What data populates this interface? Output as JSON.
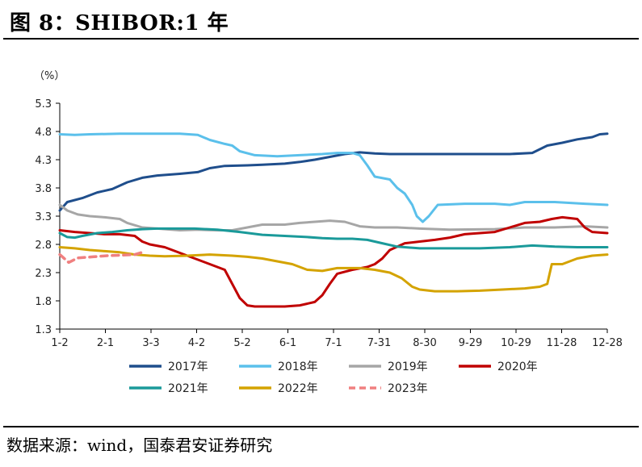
{
  "header": {
    "title": "图 8：SHIBOR:1 年"
  },
  "footer": {
    "source": "数据来源：wind，国泰君安证券研究"
  },
  "chart_data": {
    "type": "line",
    "unit_label": "（%）",
    "x_tick_labels": [
      "1-2",
      "2-1",
      "3-3",
      "4-2",
      "5-2",
      "6-1",
      "7-1",
      "7-31",
      "8-30",
      "9-29",
      "10-29",
      "11-28",
      "12-28"
    ],
    "y_tick_labels": [
      "1.3",
      "1.8",
      "2.3",
      "2.8",
      "3.3",
      "3.8",
      "4.3",
      "4.8",
      "5.3"
    ],
    "ylim": [
      1.3,
      5.3
    ],
    "grid": false,
    "legend_position": "bottom",
    "series": [
      {
        "name": "2017年",
        "color": "#1F4E8C",
        "dashed": false,
        "points": [
          [
            0,
            3.4
          ],
          [
            5,
            3.55
          ],
          [
            15,
            3.62
          ],
          [
            25,
            3.72
          ],
          [
            35,
            3.78
          ],
          [
            45,
            3.9
          ],
          [
            55,
            3.98
          ],
          [
            65,
            4.02
          ],
          [
            80,
            4.05
          ],
          [
            92,
            4.08
          ],
          [
            100,
            4.15
          ],
          [
            110,
            4.19
          ],
          [
            125,
            4.2
          ],
          [
            135,
            4.21
          ],
          [
            150,
            4.23
          ],
          [
            160,
            4.26
          ],
          [
            170,
            4.3
          ],
          [
            180,
            4.35
          ],
          [
            190,
            4.4
          ],
          [
            200,
            4.43
          ],
          [
            210,
            4.41
          ],
          [
            220,
            4.4
          ],
          [
            240,
            4.4
          ],
          [
            260,
            4.4
          ],
          [
            280,
            4.4
          ],
          [
            300,
            4.4
          ],
          [
            315,
            4.42
          ],
          [
            325,
            4.55
          ],
          [
            335,
            4.6
          ],
          [
            345,
            4.66
          ],
          [
            355,
            4.7
          ],
          [
            360,
            4.75
          ],
          [
            365,
            4.76
          ]
        ]
      },
      {
        "name": "2018年",
        "color": "#5BC0EB",
        "dashed": false,
        "points": [
          [
            0,
            4.75
          ],
          [
            10,
            4.74
          ],
          [
            20,
            4.75
          ],
          [
            40,
            4.76
          ],
          [
            60,
            4.76
          ],
          [
            80,
            4.76
          ],
          [
            92,
            4.74
          ],
          [
            100,
            4.65
          ],
          [
            110,
            4.58
          ],
          [
            115,
            4.55
          ],
          [
            120,
            4.45
          ],
          [
            130,
            4.38
          ],
          [
            145,
            4.36
          ],
          [
            160,
            4.38
          ],
          [
            175,
            4.4
          ],
          [
            185,
            4.42
          ],
          [
            195,
            4.42
          ],
          [
            200,
            4.38
          ],
          [
            205,
            4.2
          ],
          [
            210,
            4.0
          ],
          [
            220,
            3.95
          ],
          [
            225,
            3.8
          ],
          [
            230,
            3.7
          ],
          [
            235,
            3.5
          ],
          [
            238,
            3.3
          ],
          [
            242,
            3.2
          ],
          [
            246,
            3.3
          ],
          [
            252,
            3.5
          ],
          [
            270,
            3.52
          ],
          [
            290,
            3.52
          ],
          [
            300,
            3.5
          ],
          [
            310,
            3.55
          ],
          [
            330,
            3.55
          ],
          [
            350,
            3.52
          ],
          [
            365,
            3.5
          ]
        ]
      },
      {
        "name": "2019年",
        "color": "#A6A6A6",
        "dashed": false,
        "points": [
          [
            0,
            3.5
          ],
          [
            5,
            3.4
          ],
          [
            12,
            3.33
          ],
          [
            20,
            3.3
          ],
          [
            30,
            3.28
          ],
          [
            40,
            3.25
          ],
          [
            45,
            3.18
          ],
          [
            55,
            3.1
          ],
          [
            65,
            3.08
          ],
          [
            80,
            3.05
          ],
          [
            92,
            3.06
          ],
          [
            105,
            3.05
          ],
          [
            115,
            3.05
          ],
          [
            125,
            3.1
          ],
          [
            135,
            3.15
          ],
          [
            150,
            3.15
          ],
          [
            160,
            3.18
          ],
          [
            170,
            3.2
          ],
          [
            180,
            3.22
          ],
          [
            190,
            3.2
          ],
          [
            200,
            3.12
          ],
          [
            210,
            3.1
          ],
          [
            225,
            3.1
          ],
          [
            240,
            3.08
          ],
          [
            260,
            3.06
          ],
          [
            290,
            3.07
          ],
          [
            310,
            3.1
          ],
          [
            330,
            3.1
          ],
          [
            350,
            3.12
          ],
          [
            365,
            3.1
          ]
        ]
      },
      {
        "name": "2020年",
        "color": "#C00000",
        "dashed": false,
        "points": [
          [
            0,
            3.05
          ],
          [
            10,
            3.02
          ],
          [
            20,
            3.0
          ],
          [
            30,
            2.98
          ],
          [
            40,
            2.98
          ],
          [
            50,
            2.95
          ],
          [
            55,
            2.85
          ],
          [
            60,
            2.8
          ],
          [
            70,
            2.75
          ],
          [
            75,
            2.7
          ],
          [
            80,
            2.65
          ],
          [
            90,
            2.55
          ],
          [
            100,
            2.45
          ],
          [
            110,
            2.35
          ],
          [
            115,
            2.1
          ],
          [
            120,
            1.85
          ],
          [
            125,
            1.72
          ],
          [
            130,
            1.7
          ],
          [
            140,
            1.7
          ],
          [
            150,
            1.7
          ],
          [
            160,
            1.72
          ],
          [
            170,
            1.78
          ],
          [
            175,
            1.9
          ],
          [
            180,
            2.1
          ],
          [
            185,
            2.28
          ],
          [
            195,
            2.35
          ],
          [
            205,
            2.4
          ],
          [
            210,
            2.45
          ],
          [
            215,
            2.55
          ],
          [
            220,
            2.7
          ],
          [
            230,
            2.82
          ],
          [
            240,
            2.85
          ],
          [
            250,
            2.88
          ],
          [
            260,
            2.92
          ],
          [
            270,
            2.98
          ],
          [
            280,
            3.0
          ],
          [
            290,
            3.02
          ],
          [
            300,
            3.1
          ],
          [
            310,
            3.18
          ],
          [
            320,
            3.2
          ],
          [
            328,
            3.25
          ],
          [
            335,
            3.28
          ],
          [
            345,
            3.25
          ],
          [
            350,
            3.1
          ],
          [
            355,
            3.02
          ],
          [
            365,
            3.0
          ]
        ]
      },
      {
        "name": "2021年",
        "color": "#1A9A9A",
        "dashed": false,
        "points": [
          [
            0,
            3.0
          ],
          [
            5,
            2.93
          ],
          [
            10,
            2.92
          ],
          [
            15,
            2.95
          ],
          [
            25,
            3.0
          ],
          [
            35,
            3.02
          ],
          [
            45,
            3.05
          ],
          [
            55,
            3.07
          ],
          [
            65,
            3.08
          ],
          [
            75,
            3.08
          ],
          [
            90,
            3.08
          ],
          [
            105,
            3.06
          ],
          [
            120,
            3.02
          ],
          [
            135,
            2.97
          ],
          [
            150,
            2.95
          ],
          [
            165,
            2.93
          ],
          [
            175,
            2.91
          ],
          [
            185,
            2.9
          ],
          [
            195,
            2.9
          ],
          [
            205,
            2.88
          ],
          [
            215,
            2.82
          ],
          [
            225,
            2.76
          ],
          [
            240,
            2.73
          ],
          [
            260,
            2.73
          ],
          [
            280,
            2.73
          ],
          [
            300,
            2.75
          ],
          [
            315,
            2.78
          ],
          [
            330,
            2.76
          ],
          [
            345,
            2.75
          ],
          [
            365,
            2.75
          ]
        ]
      },
      {
        "name": "2022年",
        "color": "#D4A300",
        "dashed": false,
        "points": [
          [
            0,
            2.75
          ],
          [
            10,
            2.73
          ],
          [
            20,
            2.7
          ],
          [
            30,
            2.68
          ],
          [
            40,
            2.66
          ],
          [
            50,
            2.62
          ],
          [
            60,
            2.6
          ],
          [
            70,
            2.59
          ],
          [
            85,
            2.6
          ],
          [
            100,
            2.62
          ],
          [
            115,
            2.6
          ],
          [
            125,
            2.58
          ],
          [
            135,
            2.55
          ],
          [
            145,
            2.5
          ],
          [
            155,
            2.45
          ],
          [
            165,
            2.35
          ],
          [
            175,
            2.33
          ],
          [
            185,
            2.38
          ],
          [
            200,
            2.38
          ],
          [
            210,
            2.35
          ],
          [
            220,
            2.3
          ],
          [
            228,
            2.2
          ],
          [
            235,
            2.05
          ],
          [
            240,
            2.0
          ],
          [
            250,
            1.97
          ],
          [
            265,
            1.97
          ],
          [
            280,
            1.98
          ],
          [
            295,
            2.0
          ],
          [
            310,
            2.02
          ],
          [
            320,
            2.05
          ],
          [
            325,
            2.1
          ],
          [
            328,
            2.45
          ],
          [
            335,
            2.45
          ],
          [
            345,
            2.55
          ],
          [
            355,
            2.6
          ],
          [
            365,
            2.62
          ]
        ]
      },
      {
        "name": "2023年",
        "color": "#F08080",
        "dashed": true,
        "points": [
          [
            0,
            2.62
          ],
          [
            3,
            2.55
          ],
          [
            6,
            2.48
          ],
          [
            12,
            2.56
          ],
          [
            22,
            2.58
          ],
          [
            32,
            2.6
          ],
          [
            42,
            2.61
          ],
          [
            50,
            2.62
          ],
          [
            55,
            2.66
          ]
        ]
      }
    ]
  }
}
